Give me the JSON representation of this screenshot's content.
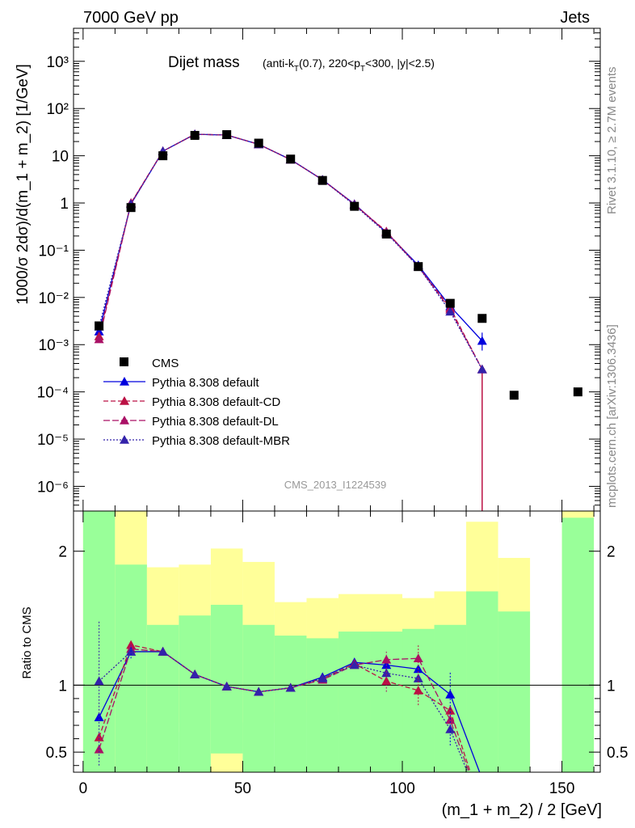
{
  "header": {
    "energy_label": "7000 GeV pp",
    "category_label": "Jets"
  },
  "side_text": {
    "rivet": "Rivet 3.1.10, ≥ 2.7M events",
    "source": "mcplots.cern.ch [arXiv:1306.3436]"
  },
  "watermark": "CMS_2013_I1224539",
  "chart_data": [
    {
      "id": "main",
      "type": "scatter",
      "title": "Dijet mass",
      "title_detail": "(anti-k",
      "title_detail_parts": [
        "(anti-k",
        "T",
        "(0.7), 220<p",
        "T",
        "<300, |y|<2.5)"
      ],
      "ylabel": "1000/σ 2dσ)/d(m_1 + m_2) [1/GeV]",
      "yscale": "log",
      "xlim": [
        -3,
        162
      ],
      "ylim": [
        3e-07,
        5000
      ],
      "y_tick_labels": [
        "10⁻⁶",
        "10⁻⁵",
        "10⁻⁴",
        "10⁻³",
        "10⁻²",
        "10⁻¹",
        "1",
        "10",
        "10²",
        "10³"
      ],
      "legend_position": "bottom-left",
      "reference": {
        "name": "CMS",
        "color": "#000000",
        "x": [
          5,
          15,
          25,
          35,
          45,
          55,
          65,
          75,
          85,
          95,
          105,
          115,
          125,
          135,
          155
        ],
        "y": [
          0.0025,
          0.8,
          10,
          27,
          28,
          18.5,
          8.5,
          3.0,
          0.85,
          0.22,
          0.045,
          0.0075,
          0.0036,
          8.5e-05,
          0.0001
        ]
      },
      "series": [
        {
          "name": "Pythia 8.308 default",
          "color": "#0000dd",
          "dash": "",
          "x": [
            5,
            15,
            25,
            35,
            45,
            55,
            65,
            75,
            85,
            95,
            105,
            115,
            125
          ],
          "y": [
            0.0019,
            0.95,
            12.5,
            28.5,
            27.5,
            17.5,
            8.3,
            3.1,
            0.95,
            0.24,
            0.048,
            0.0065,
            0.0012
          ]
        },
        {
          "name": "Pythia 8.308 default-CD",
          "color": "#bb1144",
          "dash": "6,3",
          "x": [
            5,
            15,
            25,
            35,
            45,
            55,
            65,
            75,
            85,
            95,
            105,
            115,
            125
          ],
          "y": [
            0.0015,
            1.0,
            12.5,
            28.5,
            27.5,
            17.5,
            8.3,
            3.1,
            0.93,
            0.25,
            0.045,
            0.006,
            0.0003
          ]
        },
        {
          "name": "Pythia 8.308 default-DL",
          "color": "#aa1166",
          "dash": "8,3",
          "x": [
            5,
            15,
            25,
            35,
            45,
            55,
            65,
            75,
            85,
            95,
            105,
            115,
            125
          ],
          "y": [
            0.0013,
            0.98,
            12.5,
            28.5,
            27.5,
            17.5,
            8.3,
            3.1,
            0.93,
            0.24,
            0.045,
            0.0055,
            0.0003
          ]
        },
        {
          "name": "Pythia 8.308 default-MBR",
          "color": "#3322aa",
          "dash": "2,2",
          "x": [
            5,
            15,
            25,
            35,
            45,
            55,
            65,
            75,
            85,
            95,
            105,
            115,
            125
          ],
          "y": [
            0.0024,
            0.95,
            12.5,
            28.5,
            27.5,
            17.5,
            8.3,
            3.1,
            0.9,
            0.23,
            0.045,
            0.005,
            0.0003
          ]
        }
      ]
    },
    {
      "id": "ratio",
      "type": "line",
      "ylabel": "Ratio to CMS",
      "xlabel": "(m_1 + m_2) / 2 [GeV]",
      "xlim": [
        -3,
        162
      ],
      "ylim": [
        0.35,
        2.3
      ],
      "x_ticks": [
        0,
        50,
        100,
        150
      ],
      "y_ticks": [
        0.5,
        1,
        2
      ],
      "y_tick_labels": [
        "0.5",
        "1",
        "2"
      ],
      "bands": [
        {
          "lo": 0,
          "hi": 10,
          "g": [
            0.3,
            2.3
          ],
          "y": [
            0.3,
            2.3
          ]
        },
        {
          "lo": 10,
          "hi": 20,
          "g": [
            0.3,
            1.9
          ],
          "y": [
            0.3,
            2.3
          ]
        },
        {
          "lo": 20,
          "hi": 30,
          "g": [
            0.3,
            1.45
          ],
          "y": [
            0.72,
            1.88
          ]
        },
        {
          "lo": 30,
          "hi": 40,
          "g": [
            0.3,
            1.52
          ],
          "y": [
            0.65,
            1.9
          ]
        },
        {
          "lo": 40,
          "hi": 50,
          "g": [
            0.49,
            1.6
          ],
          "y": [
            0.3,
            2.02
          ]
        },
        {
          "lo": 50,
          "hi": 60,
          "g": [
            0.3,
            1.45
          ],
          "y": [
            0.72,
            1.92
          ]
        },
        {
          "lo": 60,
          "hi": 70,
          "g": [
            0.3,
            1.37
          ],
          "y": [
            0.8,
            1.62
          ]
        },
        {
          "lo": 70,
          "hi": 80,
          "g": [
            0.3,
            1.35
          ],
          "y": [
            0.8,
            1.65
          ]
        },
        {
          "lo": 80,
          "hi": 90,
          "g": [
            0.3,
            1.4
          ],
          "y": [
            0.78,
            1.68
          ]
        },
        {
          "lo": 90,
          "hi": 100,
          "g": [
            0.3,
            1.4
          ],
          "y": [
            0.73,
            1.68
          ]
        },
        {
          "lo": 100,
          "hi": 110,
          "g": [
            0.3,
            1.42
          ],
          "y": [
            0.66,
            1.65
          ]
        },
        {
          "lo": 110,
          "hi": 120,
          "g": [
            0.3,
            1.45
          ],
          "y": [
            0.4,
            1.7
          ]
        },
        {
          "lo": 120,
          "hi": 130,
          "g": [
            0.3,
            1.7
          ],
          "y": [
            0.3,
            2.22
          ]
        },
        {
          "lo": 130,
          "hi": 140,
          "g": [
            0.3,
            1.55
          ],
          "y": [
            0.3,
            1.95
          ]
        },
        {
          "lo": 150,
          "hi": 160,
          "g": [
            0.3,
            2.25
          ],
          "y": [
            0.3,
            2.3
          ]
        }
      ],
      "series": [
        {
          "name": "Pythia 8.308 default",
          "color": "#0000dd",
          "dash": "",
          "x": [
            5,
            15,
            25,
            35,
            45,
            55,
            65,
            75,
            85,
            95,
            105,
            115,
            125
          ],
          "y": [
            0.76,
            1.25,
            1.25,
            1.08,
            0.99,
            0.95,
            0.98,
            1.06,
            1.17,
            1.15,
            1.12,
            0.93,
            0.3
          ]
        },
        {
          "name": "Pythia 8.308 default-CD",
          "color": "#bb1144",
          "dash": "6,3",
          "x": [
            5,
            15,
            25,
            35,
            45,
            55,
            65,
            75,
            85,
            95,
            105,
            115,
            125
          ],
          "y": [
            0.61,
            1.3,
            1.25,
            1.08,
            0.99,
            0.95,
            0.98,
            1.05,
            1.16,
            1.03,
            0.96,
            0.81,
            0.08
          ]
        },
        {
          "name": "Pythia 8.308 default-DL",
          "color": "#aa1166",
          "dash": "8,3",
          "x": [
            5,
            15,
            25,
            35,
            45,
            55,
            65,
            75,
            85,
            95,
            105,
            115,
            125
          ],
          "y": [
            0.52,
            1.27,
            1.25,
            1.08,
            0.99,
            0.95,
            0.98,
            1.04,
            1.15,
            1.19,
            1.2,
            0.74,
            0.08
          ]
        },
        {
          "name": "Pythia 8.308 default-MBR",
          "color": "#3322aa",
          "dash": "2,2",
          "x": [
            5,
            15,
            25,
            35,
            45,
            55,
            65,
            75,
            85,
            95,
            105,
            115,
            125
          ],
          "y": [
            1.03,
            1.25,
            1.25,
            1.08,
            0.99,
            0.95,
            0.98,
            1.05,
            1.15,
            1.09,
            1.05,
            0.67,
            0.08
          ]
        }
      ]
    }
  ]
}
